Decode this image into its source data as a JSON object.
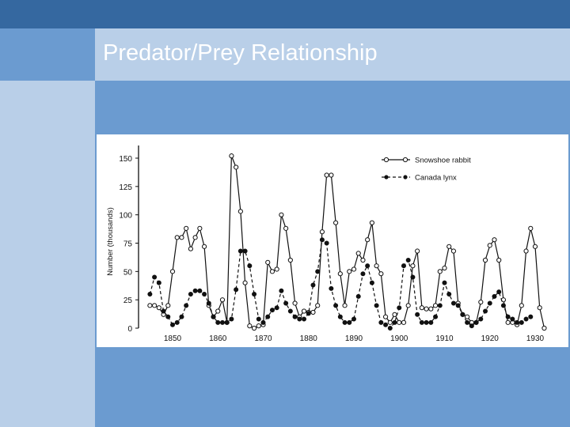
{
  "slide": {
    "title": "Predator/Prey Relationship"
  },
  "colors": {
    "top_bar": "#3568a0",
    "accent_blue": "#6b9bd0",
    "light_blue": "#b9cfe8",
    "ink": "#111111"
  },
  "chart_data": {
    "type": "line",
    "title": "",
    "xlabel": "",
    "ylabel": "Number (thousands)",
    "xlim": [
      1845,
      1935
    ],
    "ylim": [
      0,
      160
    ],
    "x_ticks": [
      1850,
      1860,
      1870,
      1880,
      1890,
      1900,
      1910,
      1920,
      1930
    ],
    "y_ticks": [
      0,
      25,
      50,
      75,
      100,
      125,
      150
    ],
    "legend": {
      "placement": "top-right"
    },
    "series": [
      {
        "name": "Snowshoe rabbit",
        "marker": "open-circle",
        "style": "solid",
        "x": [
          1845,
          1846,
          1847,
          1848,
          1849,
          1850,
          1851,
          1852,
          1853,
          1854,
          1855,
          1856,
          1857,
          1858,
          1859,
          1860,
          1861,
          1862,
          1863,
          1864,
          1865,
          1866,
          1867,
          1868,
          1869,
          1870,
          1871,
          1872,
          1873,
          1874,
          1875,
          1876,
          1877,
          1878,
          1879,
          1880,
          1881,
          1882,
          1883,
          1884,
          1885,
          1886,
          1887,
          1888,
          1889,
          1890,
          1891,
          1892,
          1893,
          1894,
          1895,
          1896,
          1897,
          1898,
          1899,
          1900,
          1901,
          1902,
          1903,
          1904,
          1905,
          1906,
          1907,
          1908,
          1909,
          1910,
          1911,
          1912,
          1913,
          1914,
          1915,
          1916,
          1917,
          1918,
          1919,
          1920,
          1921,
          1922,
          1923,
          1924,
          1925,
          1926,
          1927,
          1928,
          1929,
          1930,
          1931,
          1932
        ],
        "values": [
          20,
          20,
          18,
          12,
          20,
          50,
          80,
          80,
          88,
          70,
          80,
          88,
          72,
          20,
          10,
          15,
          25,
          5,
          152,
          142,
          103,
          40,
          2,
          0,
          2,
          3,
          58,
          50,
          52,
          100,
          88,
          60,
          22,
          10,
          15,
          14,
          14,
          20,
          85,
          135,
          135,
          93,
          48,
          20,
          50,
          52,
          66,
          60,
          78,
          93,
          55,
          48,
          10,
          5,
          12,
          5,
          5,
          20,
          55,
          68,
          18,
          17,
          17,
          20,
          50,
          53,
          72,
          68,
          22,
          12,
          10,
          5,
          5,
          23,
          60,
          73,
          78,
          60,
          25,
          5,
          5,
          3,
          20,
          68,
          88,
          72,
          18,
          0
        ]
      },
      {
        "name": "Canada lynx",
        "marker": "filled-circle",
        "style": "dashed",
        "x": [
          1845,
          1846,
          1847,
          1848,
          1849,
          1850,
          1851,
          1852,
          1853,
          1854,
          1855,
          1856,
          1857,
          1858,
          1859,
          1860,
          1861,
          1862,
          1863,
          1864,
          1865,
          1866,
          1867,
          1868,
          1869,
          1870,
          1871,
          1872,
          1873,
          1874,
          1875,
          1876,
          1877,
          1878,
          1879,
          1880,
          1881,
          1882,
          1883,
          1884,
          1885,
          1886,
          1887,
          1888,
          1889,
          1890,
          1891,
          1892,
          1893,
          1894,
          1895,
          1896,
          1897,
          1898,
          1899,
          1900,
          1901,
          1902,
          1903,
          1904,
          1905,
          1906,
          1907,
          1908,
          1909,
          1910,
          1911,
          1912,
          1913,
          1914,
          1915,
          1916,
          1917,
          1918,
          1919,
          1920,
          1921,
          1922,
          1923,
          1924,
          1925,
          1926,
          1927,
          1928,
          1929
        ],
        "values": [
          30,
          45,
          40,
          15,
          10,
          3,
          5,
          10,
          20,
          30,
          33,
          33,
          30,
          22,
          10,
          5,
          5,
          5,
          8,
          34,
          68,
          68,
          55,
          30,
          8,
          5,
          10,
          16,
          18,
          33,
          22,
          15,
          10,
          8,
          8,
          13,
          38,
          50,
          78,
          75,
          35,
          20,
          10,
          5,
          5,
          8,
          28,
          48,
          55,
          40,
          20,
          5,
          3,
          0,
          5,
          18,
          55,
          60,
          45,
          12,
          5,
          5,
          5,
          10,
          20,
          40,
          30,
          22,
          20,
          12,
          5,
          2,
          5,
          8,
          15,
          22,
          28,
          32,
          20,
          10,
          8,
          5,
          5,
          8,
          10
        ]
      }
    ]
  }
}
